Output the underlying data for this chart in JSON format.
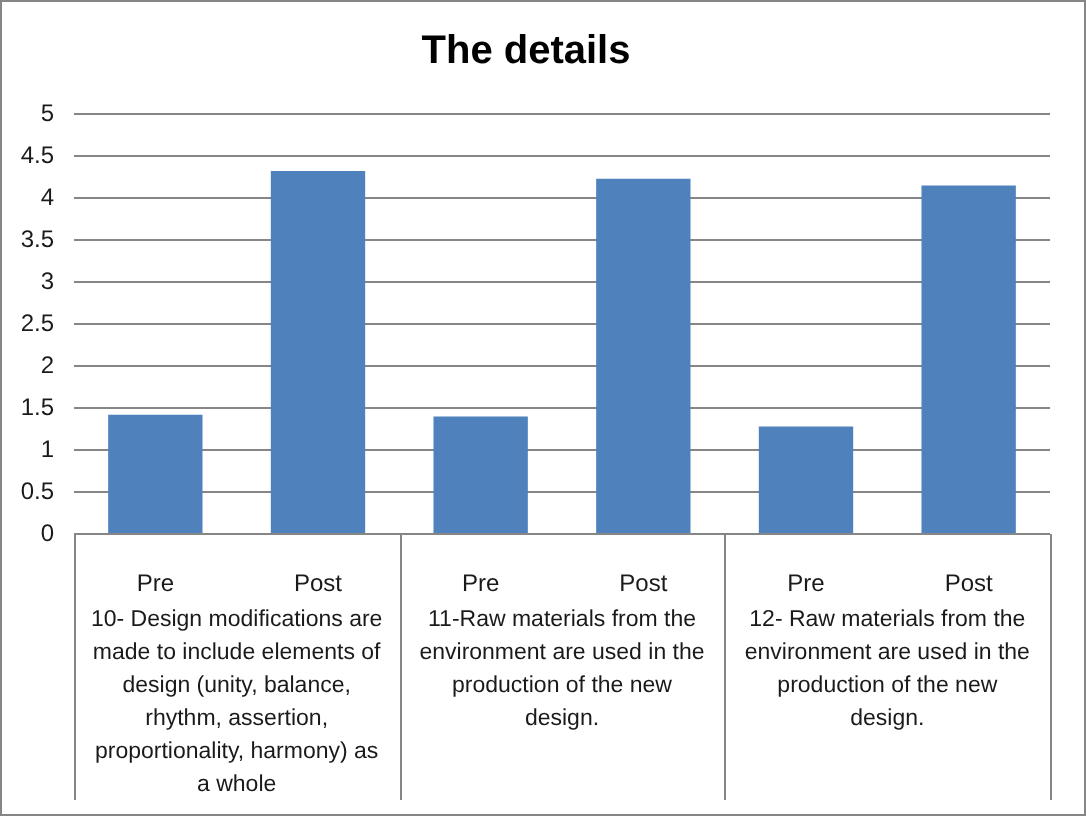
{
  "chart_data": {
    "type": "bar",
    "title": "The details",
    "categories": [
      "Pre",
      "Post",
      "Pre",
      "Post",
      "Pre",
      "Post"
    ],
    "values": [
      1.42,
      4.32,
      1.4,
      4.23,
      1.28,
      4.15
    ],
    "color": "#4f81bd",
    "ylim": [
      0,
      5
    ],
    "yticks": [
      0,
      0.5,
      1,
      1.5,
      2,
      2.5,
      3,
      3.5,
      4,
      4.5,
      5
    ],
    "grid": "y",
    "legend": false,
    "annotations": [
      "10- Design modifications are made to include elements of design (unity, balance, rhythm, assertion, proportionality, harmony) as a whole",
      "11-Raw materials from the environment are used in the production of the new design.",
      "12- Raw materials from the environment are used in the production of the new design."
    ]
  }
}
